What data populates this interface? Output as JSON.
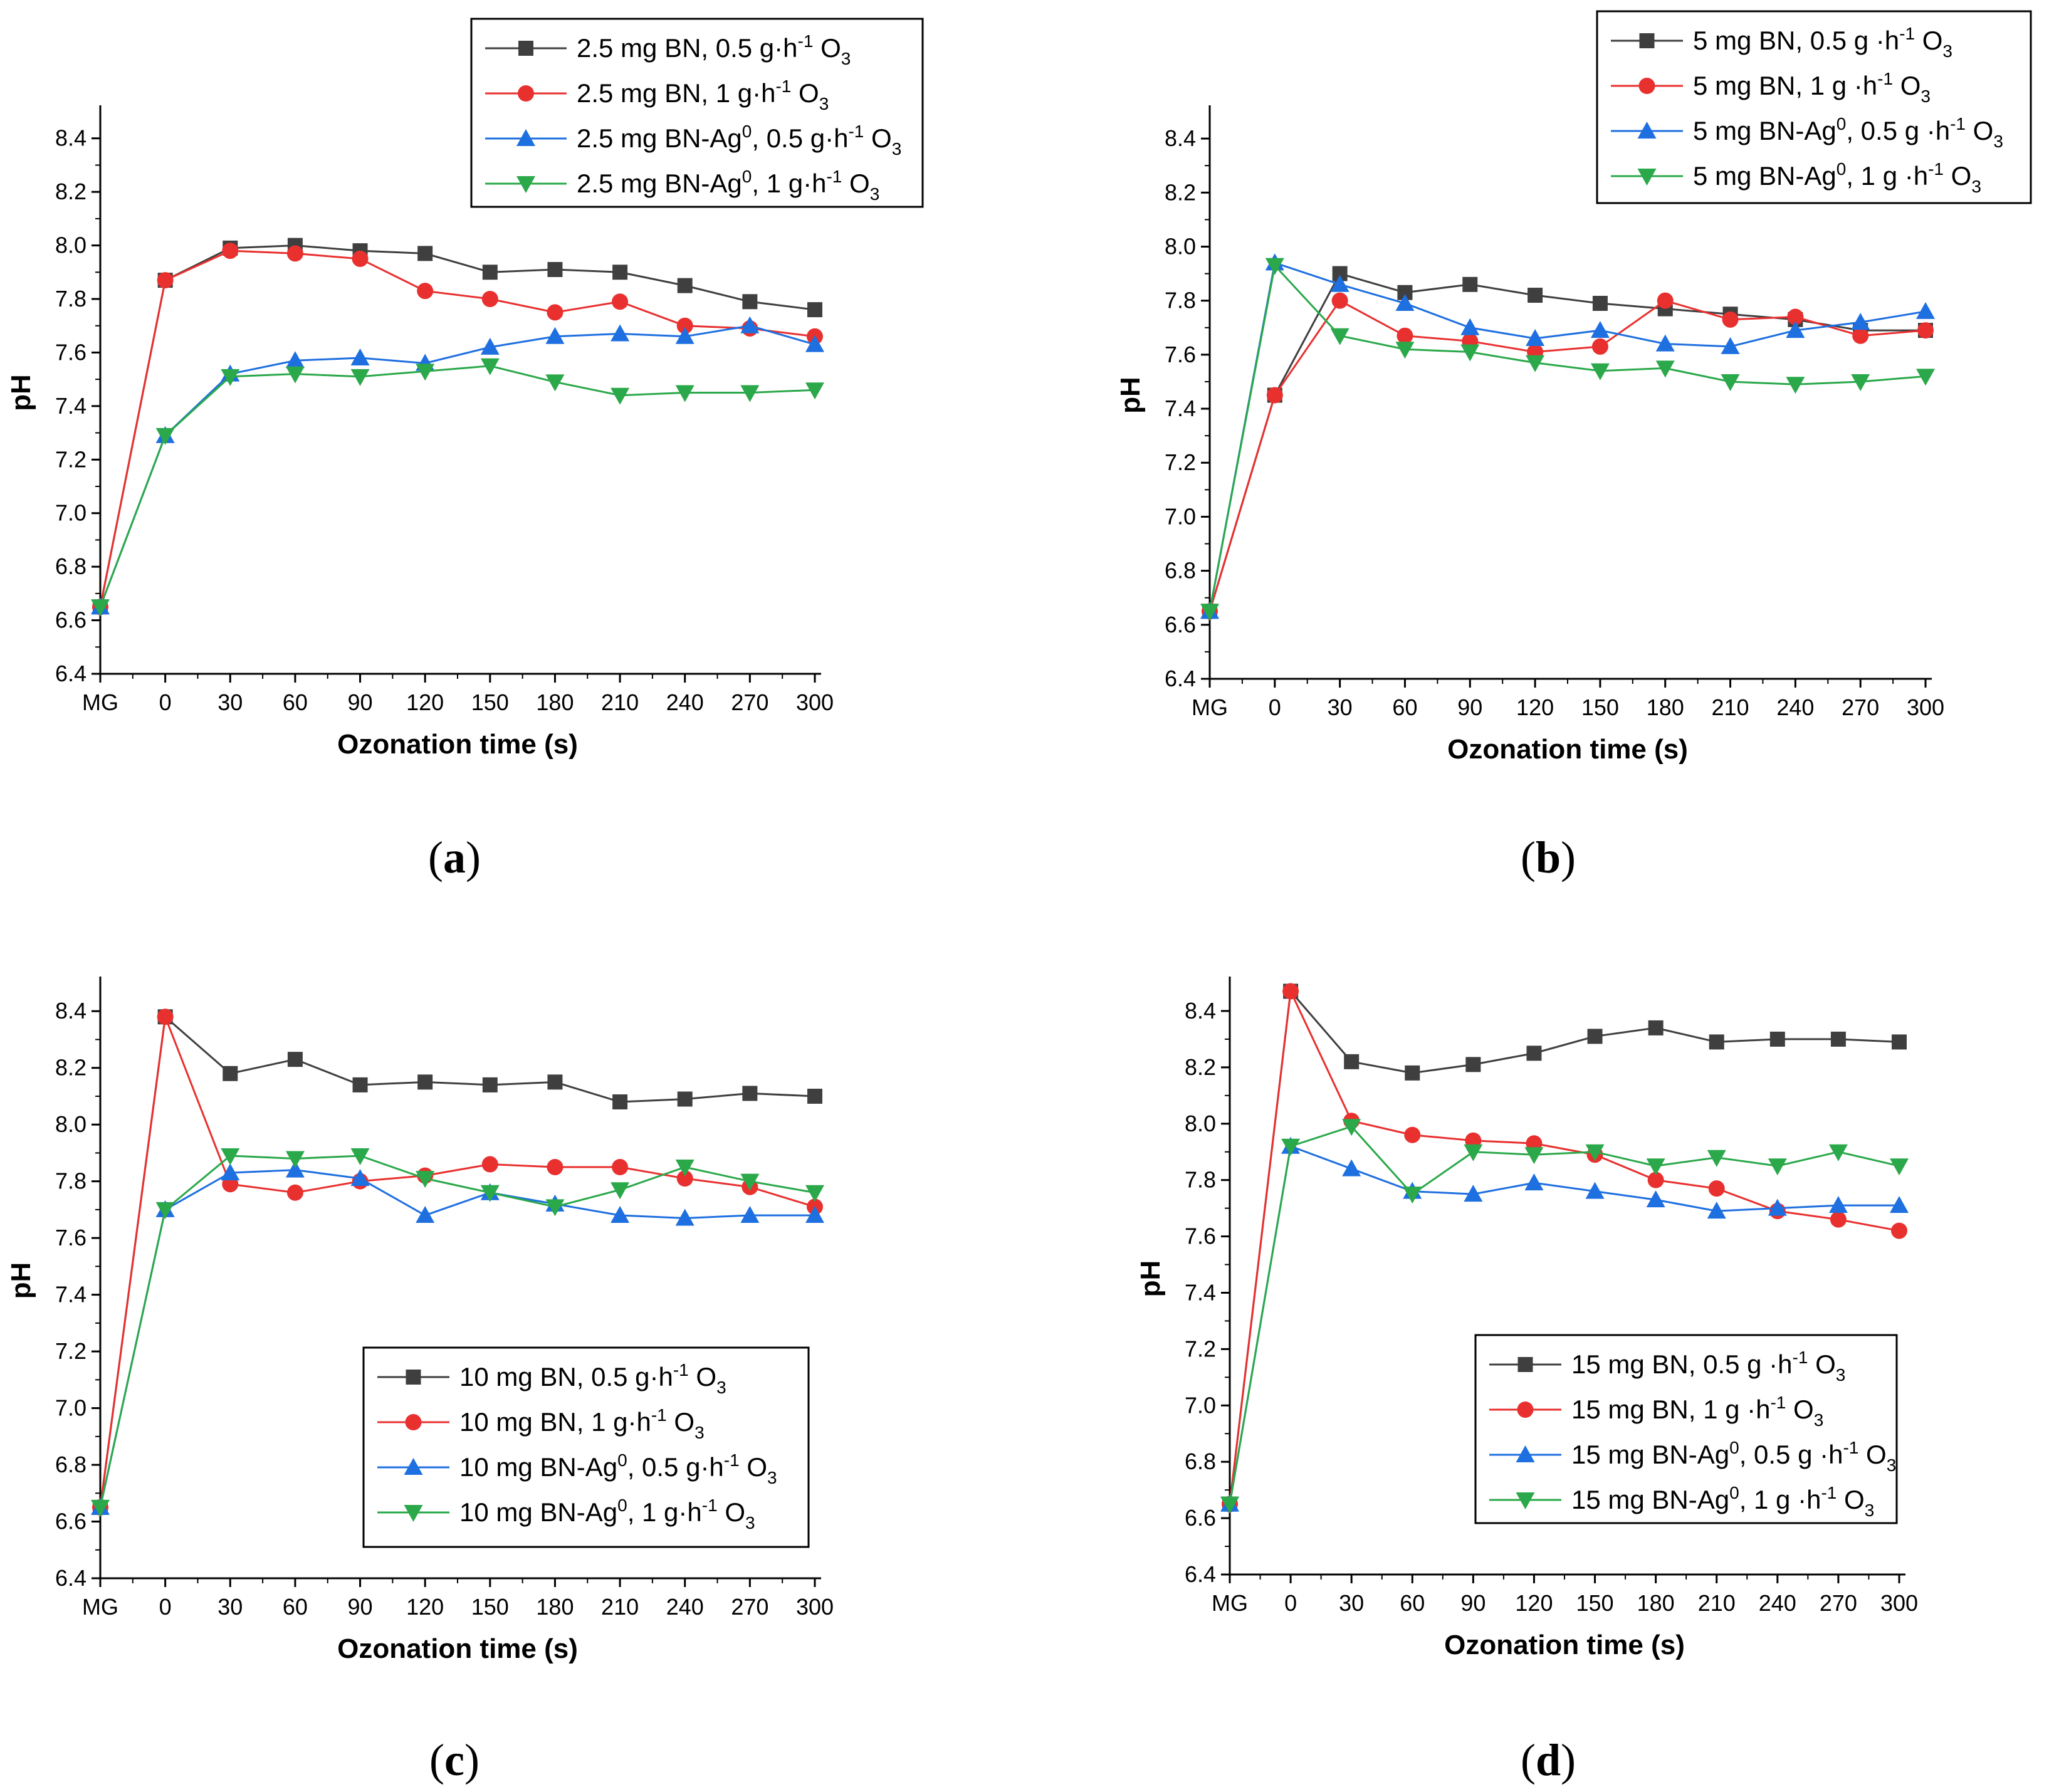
{
  "chart_data": [
    {
      "type": "line",
      "panel": "a",
      "panel_label": "(a)",
      "xlabel": "Ozonation time (s)",
      "ylabel": "pH",
      "categories": [
        "MG",
        "0",
        "30",
        "60",
        "90",
        "120",
        "150",
        "180",
        "210",
        "240",
        "270",
        "300"
      ],
      "ylim": [
        6.4,
        8.5
      ],
      "yticks": [
        "6.4",
        "6.6",
        "6.8",
        "7.0",
        "7.2",
        "7.4",
        "7.6",
        "7.8",
        "8.0",
        "8.2",
        "8.4"
      ],
      "legend_position": "top-right",
      "series": [
        {
          "name": "2.5 mg BN, 0.5 g·h⁻¹ O₃",
          "color": "#3f3f3f",
          "marker": "square",
          "values": [
            6.65,
            7.87,
            7.99,
            8.0,
            7.98,
            7.97,
            7.9,
            7.91,
            7.9,
            7.85,
            7.79,
            7.76
          ]
        },
        {
          "name": "2.5 mg BN, 1 g·h⁻¹ O₃",
          "color": "#e8302f",
          "marker": "circle",
          "values": [
            6.65,
            7.87,
            7.98,
            7.97,
            7.95,
            7.83,
            7.8,
            7.75,
            7.79,
            7.7,
            7.69,
            7.66
          ]
        },
        {
          "name": "2.5 mg BN-Ag⁰, 0.5 g·h⁻¹ O₃",
          "color": "#1e6fe0",
          "marker": "triangle-up",
          "values": [
            6.65,
            7.29,
            7.52,
            7.57,
            7.58,
            7.56,
            7.62,
            7.66,
            7.67,
            7.66,
            7.7,
            7.63
          ]
        },
        {
          "name": "2.5 mg BN-Ag⁰, 1 g·h⁻¹ O₃",
          "color": "#2aa84a",
          "marker": "triangle-down",
          "values": [
            6.65,
            7.29,
            7.51,
            7.52,
            7.51,
            7.53,
            7.55,
            7.49,
            7.44,
            7.45,
            7.45,
            7.46
          ]
        }
      ]
    },
    {
      "type": "line",
      "panel": "b",
      "panel_label": "(b)",
      "xlabel": "Ozonation time (s)",
      "ylabel": "pH",
      "categories": [
        "MG",
        "0",
        "30",
        "60",
        "90",
        "120",
        "150",
        "180",
        "210",
        "240",
        "270",
        "300"
      ],
      "ylim": [
        6.4,
        8.5
      ],
      "yticks": [
        "6.4",
        "6.6",
        "6.8",
        "7.0",
        "7.2",
        "7.4",
        "7.6",
        "7.8",
        "8.0",
        "8.2",
        "8.4"
      ],
      "legend_position": "top-right",
      "series": [
        {
          "name": "5 mg BN, 0.5 g ·h⁻¹ O₃",
          "color": "#3f3f3f",
          "marker": "square",
          "values": [
            6.65,
            7.45,
            7.9,
            7.83,
            7.86,
            7.82,
            7.79,
            7.77,
            7.75,
            7.73,
            7.69,
            7.69
          ]
        },
        {
          "name": "5 mg BN, 1 g ·h⁻¹ O₃",
          "color": "#e8302f",
          "marker": "circle",
          "values": [
            6.65,
            7.45,
            7.8,
            7.67,
            7.65,
            7.61,
            7.63,
            7.8,
            7.73,
            7.74,
            7.67,
            7.69
          ]
        },
        {
          "name": "5 mg BN-Ag⁰, 0.5 g ·h⁻¹ O₃",
          "color": "#1e6fe0",
          "marker": "triangle-up",
          "values": [
            6.65,
            7.94,
            7.86,
            7.79,
            7.7,
            7.66,
            7.69,
            7.64,
            7.63,
            7.69,
            7.72,
            7.76
          ]
        },
        {
          "name": "5 mg BN-Ag⁰, 1 g ·h⁻¹ O₃",
          "color": "#2aa84a",
          "marker": "triangle-down",
          "values": [
            6.65,
            7.93,
            7.67,
            7.62,
            7.61,
            7.57,
            7.54,
            7.55,
            7.5,
            7.49,
            7.5,
            7.52
          ]
        }
      ]
    },
    {
      "type": "line",
      "panel": "c",
      "panel_label": "(c)",
      "xlabel": "Ozonation time (s)",
      "ylabel": "pH",
      "categories": [
        "MG",
        "0",
        "30",
        "60",
        "90",
        "120",
        "150",
        "180",
        "210",
        "240",
        "270",
        "300"
      ],
      "ylim": [
        6.4,
        8.5
      ],
      "yticks": [
        "6.4",
        "6.6",
        "6.8",
        "7.0",
        "7.2",
        "7.4",
        "7.6",
        "7.8",
        "8.0",
        "8.2",
        "8.4"
      ],
      "legend_position": "bottom-right",
      "series": [
        {
          "name": "10 mg BN, 0.5 g·h⁻¹ O₃",
          "color": "#3f3f3f",
          "marker": "square",
          "values": [
            6.65,
            8.38,
            8.18,
            8.23,
            8.14,
            8.15,
            8.14,
            8.15,
            8.08,
            8.09,
            8.11,
            8.1
          ]
        },
        {
          "name": "10 mg BN, 1 g·h⁻¹ O₃",
          "color": "#e8302f",
          "marker": "circle",
          "values": [
            6.65,
            8.38,
            7.79,
            7.76,
            7.8,
            7.82,
            7.86,
            7.85,
            7.85,
            7.81,
            7.78,
            7.71
          ]
        },
        {
          "name": "10 mg BN-Ag⁰, 0.5 g·h⁻¹ O₃",
          "color": "#1e6fe0",
          "marker": "triangle-up",
          "values": [
            6.65,
            7.7,
            7.83,
            7.84,
            7.81,
            7.68,
            7.76,
            7.72,
            7.68,
            7.67,
            7.68,
            7.68
          ]
        },
        {
          "name": "10 mg BN-Ag⁰, 1 g·h⁻¹ O₃",
          "color": "#2aa84a",
          "marker": "triangle-down",
          "values": [
            6.65,
            7.7,
            7.89,
            7.88,
            7.89,
            7.81,
            7.76,
            7.71,
            7.77,
            7.85,
            7.8,
            7.76
          ]
        }
      ]
    },
    {
      "type": "line",
      "panel": "d",
      "panel_label": "(d)",
      "xlabel": "Ozonation time (s)",
      "ylabel": "pH",
      "categories": [
        "MG",
        "0",
        "30",
        "60",
        "90",
        "120",
        "150",
        "180",
        "210",
        "240",
        "270",
        "300"
      ],
      "ylim": [
        6.4,
        8.5
      ],
      "yticks": [
        "6.4",
        "6.6",
        "6.8",
        "7.0",
        "7.2",
        "7.4",
        "7.6",
        "7.8",
        "8.0",
        "8.2",
        "8.4"
      ],
      "legend_position": "bottom-right",
      "series": [
        {
          "name": "15 mg BN, 0.5 g ·h⁻¹ O₃",
          "color": "#3f3f3f",
          "marker": "square",
          "values": [
            6.65,
            8.47,
            8.22,
            8.18,
            8.21,
            8.25,
            8.31,
            8.34,
            8.29,
            8.3,
            8.3,
            8.29
          ]
        },
        {
          "name": "15 mg BN, 1 g ·h⁻¹ O₃",
          "color": "#e8302f",
          "marker": "circle",
          "values": [
            6.65,
            8.47,
            8.01,
            7.96,
            7.94,
            7.93,
            7.89,
            7.8,
            7.77,
            7.69,
            7.66,
            7.62
          ]
        },
        {
          "name": "15 mg BN-Ag⁰, 0.5 g ·h⁻¹ O₃",
          "color": "#1e6fe0",
          "marker": "triangle-up",
          "values": [
            6.65,
            7.92,
            7.84,
            7.76,
            7.75,
            7.79,
            7.76,
            7.73,
            7.69,
            7.7,
            7.71,
            7.71
          ]
        },
        {
          "name": "15 mg BN-Ag⁰, 1 g ·h⁻¹ O₃",
          "color": "#2aa84a",
          "marker": "triangle-down",
          "values": [
            6.65,
            7.92,
            7.99,
            7.75,
            7.9,
            7.89,
            7.9,
            7.85,
            7.88,
            7.85,
            7.9,
            7.85
          ]
        }
      ]
    }
  ]
}
